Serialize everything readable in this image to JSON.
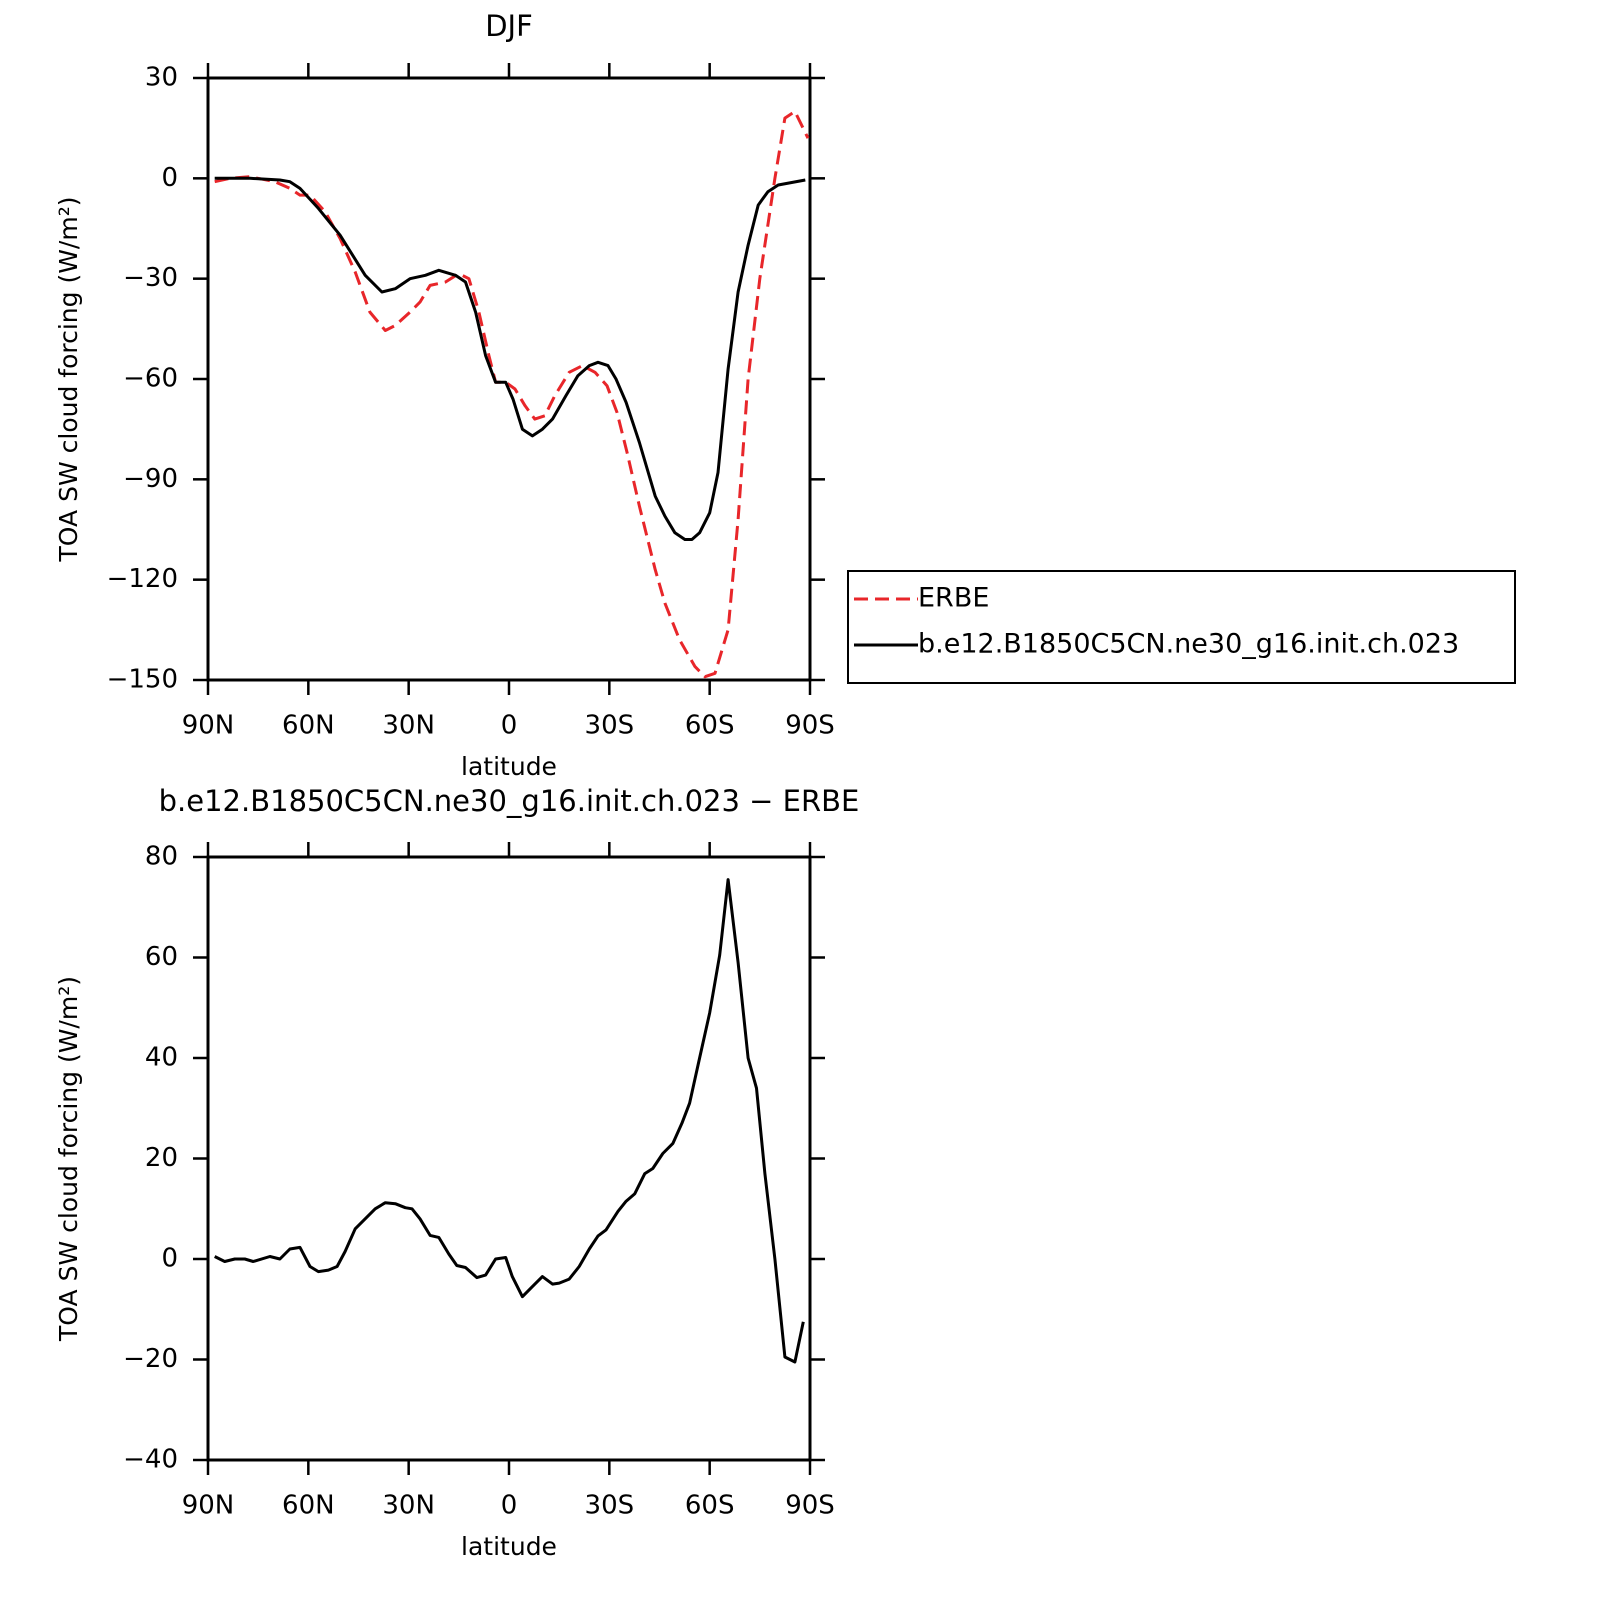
{
  "chart_data": [
    {
      "type": "line",
      "title": "DJF",
      "xlabel": "latitude",
      "ylabel": "TOA SW cloud forcing (W/m²)",
      "xlim": [
        90,
        -90
      ],
      "xticks": [
        {
          "value": 90,
          "label": "90N"
        },
        {
          "value": 60,
          "label": "60N"
        },
        {
          "value": 30,
          "label": "30N"
        },
        0,
        {
          "value": -30,
          "label": "30S"
        },
        {
          "value": -60,
          "label": "60S"
        },
        {
          "value": -90,
          "label": "90S"
        }
      ],
      "ylim": [
        -150,
        30
      ],
      "yticks": [
        30,
        0,
        {
          "value": -30,
          "label": "−30"
        },
        {
          "value": -60,
          "label": "−60"
        },
        {
          "value": -90,
          "label": "−90"
        },
        {
          "value": -120,
          "label": "−120"
        },
        {
          "value": -150,
          "label": "−150"
        }
      ],
      "legend": "right",
      "series": [
        {
          "name": "ERBE",
          "color": "#e8262a",
          "linestyle": "dashed",
          "x": [
            88,
            83.5,
            77.4,
            70,
            65.5,
            62.5,
            59.5,
            55,
            50.5,
            46,
            41.6,
            37,
            34,
            29.6,
            26.6,
            23.6,
            19,
            15,
            12,
            9,
            6,
            4,
            1,
            -1.8,
            -4.8,
            -7.7,
            -10.7,
            -13.7,
            -18,
            -22,
            -25.7,
            -29.3,
            -32.3,
            -35.3,
            -39,
            -43.7,
            -46.6,
            -51,
            -55.6,
            -58.6,
            -61.6,
            -65.5,
            -68.5,
            -71.5,
            -75,
            -79.5,
            -82.5,
            -85.5,
            -89.4
          ],
          "values": [
            -1,
            0,
            0.5,
            -1,
            -3,
            -5,
            -5,
            -10,
            -18,
            -28,
            -40,
            -45.5,
            -44,
            -40,
            -37,
            -32,
            -31,
            -28.5,
            -30,
            -40,
            -53,
            -61,
            -61,
            -63,
            -68,
            -72,
            -71,
            -65,
            -58,
            -56,
            -58,
            -62,
            -70,
            -82,
            -98,
            -117,
            -127,
            -138,
            -146,
            -149,
            -148,
            -135,
            -102,
            -60,
            -30,
            0,
            18,
            20,
            12
          ]
        },
        {
          "name": "b.e12.B1850C5CN.ne30_g16.init.ch.023",
          "color": "#000000",
          "linestyle": "solid",
          "x": [
            88,
            77.4,
            68.5,
            65.5,
            62.5,
            57,
            50.5,
            43,
            38,
            34,
            29.6,
            25,
            21,
            16,
            13,
            10,
            7,
            4,
            1,
            -1.2,
            -4,
            -7,
            -10,
            -13,
            -17,
            -20.6,
            -24,
            -26.6,
            -29.6,
            -32,
            -35,
            -39,
            -43.7,
            -46.6,
            -49.6,
            -52.6,
            -54.7,
            -57,
            -60,
            -62.5,
            -65.5,
            -68.5,
            -71.5,
            -74.5,
            -77.4,
            -80.5,
            -88.6
          ],
          "values": [
            0,
            0,
            -0.5,
            -1,
            -3,
            -9,
            -17,
            -29,
            -34,
            -33,
            -30,
            -29,
            -27.5,
            -29,
            -31,
            -40,
            -53,
            -61,
            -61,
            -66,
            -75,
            -77,
            -75,
            -72,
            -65,
            -59,
            -56,
            -55,
            -56,
            -60,
            -67,
            -79,
            -95,
            -101,
            -106,
            -108,
            -108,
            -106,
            -100,
            -88,
            -57,
            -34,
            -20,
            -8,
            -4,
            -2,
            -0.5
          ]
        }
      ]
    },
    {
      "type": "line",
      "title": "b.e12.B1850C5CN.ne30_g16.init.ch.023 − ERBE",
      "xlabel": "latitude",
      "ylabel": "TOA SW cloud forcing (W/m²)",
      "xlim": [
        90,
        -90
      ],
      "xticks": [
        {
          "value": 90,
          "label": "90N"
        },
        {
          "value": 60,
          "label": "60N"
        },
        {
          "value": 30,
          "label": "30N"
        },
        0,
        {
          "value": -30,
          "label": "30S"
        },
        {
          "value": -60,
          "label": "60S"
        },
        {
          "value": -90,
          "label": "90S"
        }
      ],
      "ylim": [
        -40,
        80
      ],
      "yticks": [
        80,
        60,
        40,
        20,
        0,
        {
          "value": -20,
          "label": "−20"
        },
        {
          "value": -40,
          "label": "−40"
        }
      ],
      "series": [
        {
          "color": "#000000",
          "linestyle": "solid",
          "x": [
            88,
            85,
            82,
            79,
            76.5,
            71.5,
            68.5,
            65.5,
            62.5,
            59.5,
            57,
            54,
            51.4,
            49,
            46,
            43,
            40,
            37,
            34,
            31,
            29,
            26.6,
            23.6,
            21,
            18,
            15.6,
            13,
            9.6,
            7,
            4,
            1,
            -1,
            -4,
            -7,
            -10,
            -13,
            -15,
            -18,
            -21,
            -24,
            -26.6,
            -29,
            -32.6,
            -35,
            -37.6,
            -40.6,
            -43,
            -46,
            -49,
            -51.7,
            -54,
            -57,
            -60,
            -63,
            -65.5,
            -68.5,
            -71.5,
            -74,
            -76.5,
            -79.5,
            -82.5,
            -85.5,
            -88
          ],
          "values": [
            0.5,
            -0.5,
            0,
            0,
            -0.5,
            0.5,
            0,
            2,
            2.3,
            -1.5,
            -2.5,
            -2.2,
            -1.5,
            1.5,
            6,
            8,
            10,
            11.2,
            11,
            10.2,
            10,
            8,
            4.7,
            4.3,
            1,
            -1.3,
            -1.7,
            -3.7,
            -3.2,
            0,
            0.3,
            -3.5,
            -7.5,
            -5.5,
            -3.5,
            -5,
            -4.8,
            -4,
            -1.5,
            2,
            4.6,
            5.8,
            9.5,
            11.5,
            13,
            17,
            18,
            21,
            23,
            27,
            31,
            40,
            49,
            60.5,
            75.5,
            59,
            40,
            34,
            17,
            0,
            -19.5,
            -20.5,
            -12.5
          ]
        }
      ]
    }
  ]
}
